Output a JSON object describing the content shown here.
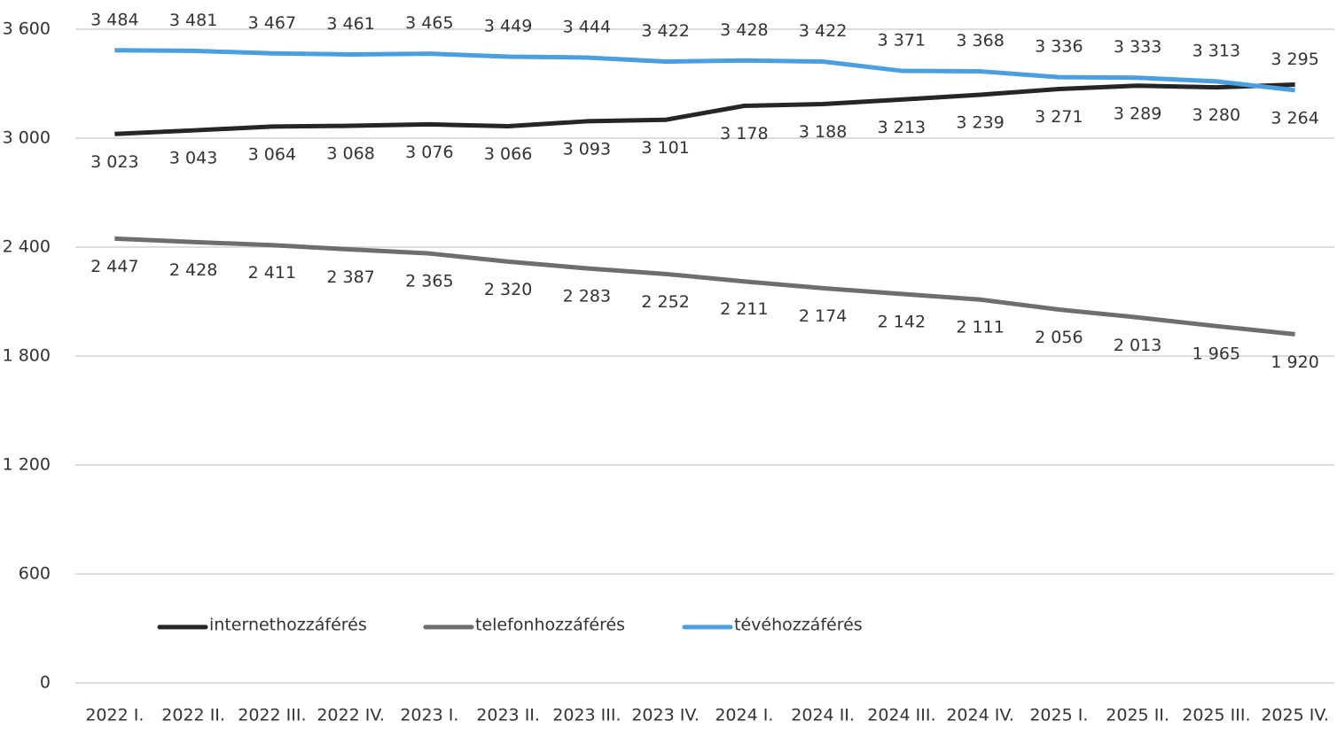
{
  "chart_data": {
    "type": "line",
    "categories": [
      "2022 I.",
      "2022 II.",
      "2022 III.",
      "2022 IV.",
      "2023 I.",
      "2023 II.",
      "2023 III.",
      "2023 IV.",
      "2024 I.",
      "2024 II.",
      "2024 III.",
      "2024 IV.",
      "2025 I.",
      "2025 II.",
      "2025 III.",
      "2025 IV."
    ],
    "series": [
      {
        "name": "internethozzáférés",
        "color": "#262626",
        "values": [
          3023,
          3043,
          3064,
          3068,
          3076,
          3066,
          3093,
          3101,
          3178,
          3188,
          3213,
          3239,
          3271,
          3289,
          3280,
          3295
        ],
        "value_labels": [
          "3 023",
          "3 043",
          "3 064",
          "3 068",
          "3 076",
          "3 066",
          "3 093",
          "3 101",
          "3 178",
          "3 188",
          "3 213",
          "3 239",
          "3 271",
          "3 289",
          "3 280",
          "3 295"
        ]
      },
      {
        "name": "telefonhozzáférés",
        "color": "#6e6e6e",
        "values": [
          2447,
          2428,
          2411,
          2387,
          2365,
          2320,
          2283,
          2252,
          2211,
          2174,
          2142,
          2111,
          2056,
          2013,
          1965,
          1920
        ],
        "value_labels": [
          "2 447",
          "2 428",
          "2 411",
          "2 387",
          "2 365",
          "2 320",
          "2 283",
          "2 252",
          "2 211",
          "2 174",
          "2 142",
          "2 111",
          "2 056",
          "2 013",
          "1 965",
          "1 920"
        ]
      },
      {
        "name": "tévéhozzáférés",
        "color": "#4a9fe0",
        "values": [
          3484,
          3481,
          3467,
          3461,
          3465,
          3449,
          3444,
          3422,
          3428,
          3422,
          3371,
          3368,
          3336,
          3333,
          3313,
          3264
        ],
        "value_labels": [
          "3 484",
          "3 481",
          "3 467",
          "3 461",
          "3 465",
          "3 449",
          "3 444",
          "3 422",
          "3 428",
          "3 422",
          "3 371",
          "3 368",
          "3 336",
          "3 333",
          "3 313",
          "3 264"
        ]
      }
    ],
    "ylim": [
      0,
      3600
    ],
    "yticks": [
      0,
      600,
      {
        "value": 1200,
        "label": "1 200"
      },
      {
        "value": 1800,
        "label": "1 800"
      },
      {
        "value": 2400,
        "label": "2 400"
      },
      {
        "value": 3000,
        "label": "3 000"
      },
      {
        "value": 3600,
        "label": "3 600"
      }
    ],
    "grid": true,
    "legend": "bottom-left"
  }
}
